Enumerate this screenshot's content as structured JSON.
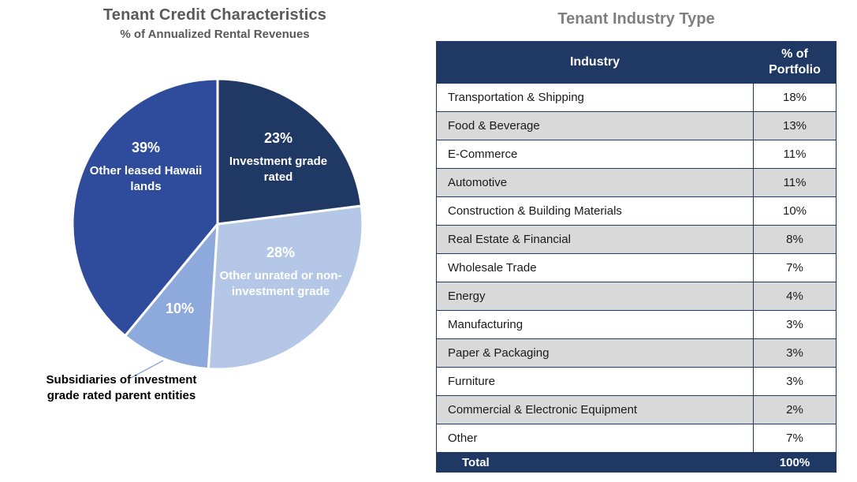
{
  "chart_data": [
    {
      "type": "pie",
      "title": "Tenant Credit Characteristics",
      "subtitle": "% of Annualized Rental Revenues",
      "direction": "clockwise from 12 o'clock",
      "slices": [
        {
          "name": "Investment grade rated",
          "pct_label": "23%",
          "value": 23,
          "color": "#1F3864",
          "label_text": "Investment grade rated"
        },
        {
          "name": "Other unrated or non-investment grade",
          "pct_label": "28%",
          "value": 28,
          "color": "#B4C7E7",
          "label_text": "Other unrated or non-investment grade"
        },
        {
          "name": "Subsidiaries of investment grade rated parent entities",
          "pct_label": "10%",
          "value": 10,
          "color": "#8EA9DB",
          "label_text": ""
        },
        {
          "name": "Other leased Hawaii lands",
          "pct_label": "39%",
          "value": 39,
          "color": "#2E4B9C",
          "label_text": "Other leased Hawaii lands"
        }
      ],
      "callout": {
        "text": "Subsidiaries of investment grade rated parent entities",
        "color": "#000000"
      }
    },
    {
      "type": "table",
      "title": "Tenant Industry Type",
      "columns": [
        "Industry",
        "% of Portfolio"
      ],
      "rows": [
        [
          "Transportation & Shipping",
          "18%"
        ],
        [
          "Food & Beverage",
          "13%"
        ],
        [
          "E-Commerce",
          "11%"
        ],
        [
          "Automotive",
          "11%"
        ],
        [
          "Construction & Building Materials",
          "10%"
        ],
        [
          "Real Estate & Financial",
          "8%"
        ],
        [
          "Wholesale Trade",
          "7%"
        ],
        [
          "Energy",
          "4%"
        ],
        [
          "Manufacturing",
          "3%"
        ],
        [
          "Paper & Packaging",
          "3%"
        ],
        [
          "Furniture",
          "3%"
        ],
        [
          "Commercial & Electronic Equipment",
          "2%"
        ],
        [
          "Other",
          "7%"
        ]
      ],
      "total_row": [
        "Total",
        "100%"
      ],
      "style": {
        "header_bg": "#1F3864",
        "header_text": "#FFFFFF",
        "alt_row_bg": "#D9D9D9",
        "border_color": "#1F3864",
        "title_color": "#7F7F7F"
      }
    }
  ]
}
